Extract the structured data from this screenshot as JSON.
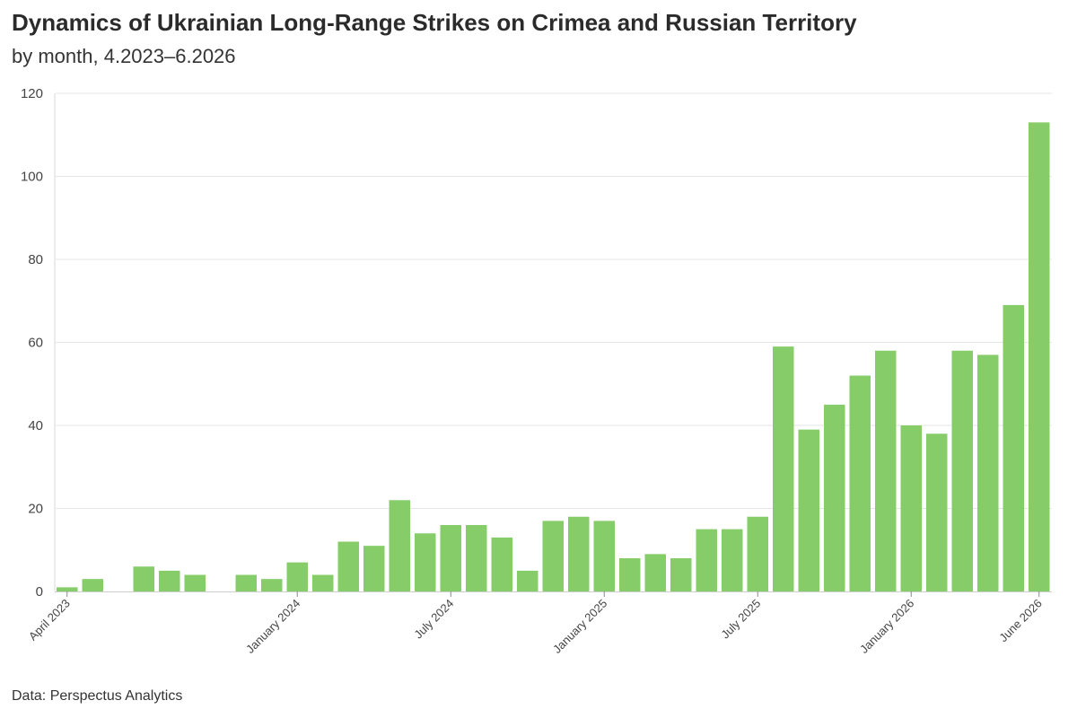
{
  "header": {
    "title": "Dynamics of Ukrainian Long-Range Strikes on Crimea and Russian Territory",
    "subtitle": "by month, 4.2023–6.2026"
  },
  "footer": {
    "source": "Data: Perspectus Analytics"
  },
  "chart_data": {
    "type": "bar",
    "title": "Dynamics of Ukrainian Long-Range Strikes on Crimea and Russian Territory",
    "subtitle": "by month, 4.2023–6.2026",
    "xlabel": "",
    "ylabel": "",
    "ylim": [
      0,
      120
    ],
    "yticks": [
      0,
      20,
      40,
      60,
      80,
      100,
      120
    ],
    "grid": true,
    "legend": "none",
    "bar_color": "#86cd6a",
    "categories": [
      "2023-04",
      "2023-05",
      "2023-06",
      "2023-07",
      "2023-08",
      "2023-09",
      "2023-10",
      "2023-11",
      "2023-12",
      "2024-01",
      "2024-02",
      "2024-03",
      "2024-04",
      "2024-05",
      "2024-06",
      "2024-07",
      "2024-08",
      "2024-09",
      "2024-10",
      "2024-11",
      "2024-12",
      "2025-01",
      "2025-02",
      "2025-03",
      "2025-04",
      "2025-05",
      "2025-06",
      "2025-07",
      "2025-08",
      "2025-09",
      "2025-10",
      "2025-11",
      "2025-12",
      "2026-01",
      "2026-02",
      "2026-03",
      "2026-04",
      "2026-05",
      "2026-06"
    ],
    "values": [
      1,
      3,
      0,
      6,
      5,
      4,
      0,
      4,
      3,
      7,
      4,
      12,
      11,
      22,
      14,
      16,
      16,
      13,
      5,
      17,
      18,
      17,
      8,
      9,
      8,
      15,
      15,
      18,
      59,
      39,
      45,
      52,
      58,
      40,
      38,
      58,
      57,
      69,
      113
    ],
    "x_tick_labels": [
      {
        "category": "2023-04",
        "label": "April 2023"
      },
      {
        "category": "2024-01",
        "label": "January 2024"
      },
      {
        "category": "2024-07",
        "label": "July 2024"
      },
      {
        "category": "2025-01",
        "label": "January 2025"
      },
      {
        "category": "2025-07",
        "label": "July 2025"
      },
      {
        "category": "2026-01",
        "label": "January 2026"
      },
      {
        "category": "2026-06",
        "label": "June 2026"
      }
    ]
  }
}
